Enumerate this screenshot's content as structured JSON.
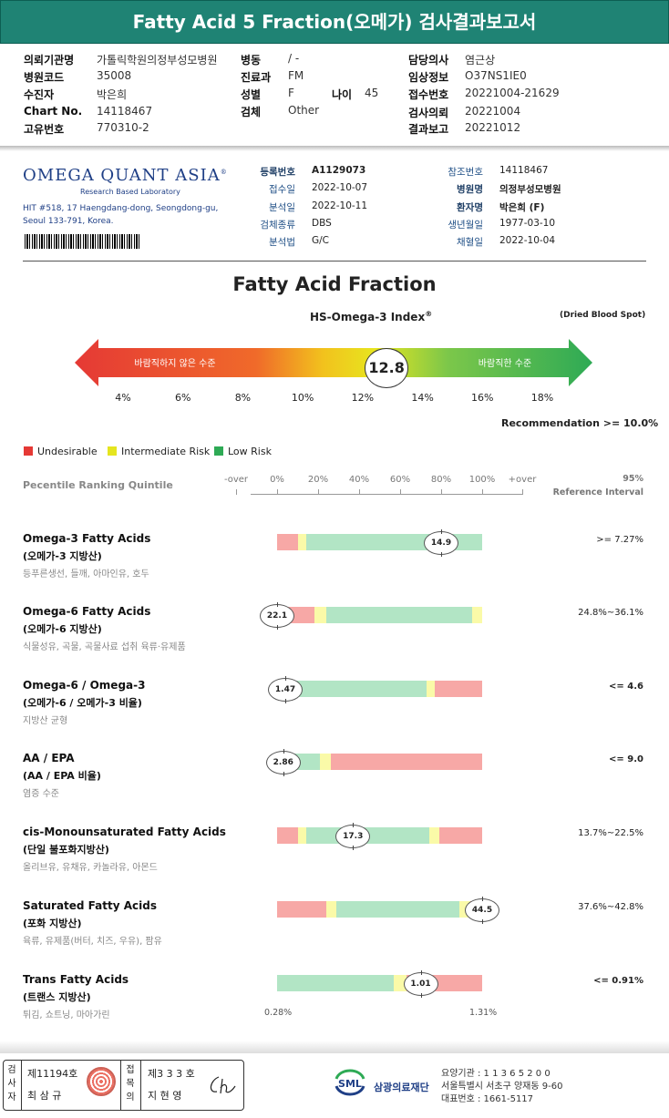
{
  "title": "Fatty Acid 5 Fraction(오메가) 검사결과보고서",
  "header": {
    "col1": [
      {
        "label": "의뢰기관명",
        "value": "가톨릭학원의정부성모병원"
      },
      {
        "label": "병원코드",
        "value": "35008"
      },
      {
        "label": "수진자",
        "value": "박은희"
      },
      {
        "label": "Chart No.",
        "value": "14118467"
      },
      {
        "label": "고유번호",
        "value": "770310-2"
      }
    ],
    "col2": [
      {
        "label": "병동",
        "value": "/ -"
      },
      {
        "label": "진료과",
        "value": "FM"
      },
      {
        "label": "성별",
        "value": "F"
      },
      {
        "label": "검체",
        "value": "Other"
      }
    ],
    "age": {
      "label": "나이",
      "value": "45"
    },
    "col3": [
      {
        "label": "담당의사",
        "value": "염근상"
      },
      {
        "label": "임상정보",
        "value": "O37NS1IE0"
      },
      {
        "label": "접수번호",
        "value": "20221004-21629"
      },
      {
        "label": "검사의뢰",
        "value": "20221004"
      },
      {
        "label": "결과보고",
        "value": "20221012"
      }
    ]
  },
  "lab": {
    "logo": "OMEGA QUANT ASIA",
    "logo_reg": "®",
    "logo_sub": "Research Based Laboratory",
    "address_1": "HIT #518, 17 Haengdang-dong, Seongdong-gu,",
    "address_2": "Seoul 133-791, Korea.",
    "left_fields": [
      {
        "label": "등록번호",
        "value": "A1129073",
        "bold": true
      },
      {
        "label": "접수일",
        "value": "2022-10-07"
      },
      {
        "label": "분석일",
        "value": "2022-10-11"
      },
      {
        "label": "검체종류",
        "value": "DBS"
      },
      {
        "label": "분석법",
        "value": "G/C"
      }
    ],
    "right_fields": [
      {
        "label": "참조번호",
        "value": "14118467"
      },
      {
        "label": "병원명",
        "value": "의정부성모병원",
        "bold": true
      },
      {
        "label": "환자명",
        "value": "박은희 (F)",
        "bold": true
      },
      {
        "label": "생년월일",
        "value": "1977-03-10"
      },
      {
        "label": "채혈일",
        "value": "2022-10-04"
      }
    ]
  },
  "index": {
    "main_title": "Fatty Acid Fraction",
    "title": "HS-Omega-3 Index",
    "title_reg": "®",
    "specimen_note": "(Dried Blood Spot)",
    "bad_label": "바람직하지 않은 수준",
    "good_label": "바람직한 수준",
    "score": 12.8,
    "score_text": "12.8",
    "ticks": [
      "4%",
      "6%",
      "8%",
      "10%",
      "12%",
      "14%",
      "16%",
      "18%"
    ],
    "tick_values": [
      4,
      6,
      8,
      10,
      12,
      14,
      16,
      18
    ],
    "recommendation": "Recommendation  >= 10.0%"
  },
  "legend": [
    {
      "label": "Undesirable",
      "color": "#e53935"
    },
    {
      "label": "Intermediate Risk",
      "color": "#e5e51f"
    },
    {
      "label": "Low Risk",
      "color": "#2eaa55"
    }
  ],
  "percentile": {
    "label": "Pecentile Ranking Quintile",
    "scale": [
      "-over",
      "0%",
      "20%",
      "40%",
      "60%",
      "80%",
      "100%",
      "+over"
    ],
    "ref_header_1": "95%",
    "ref_header_2": "Reference Interval"
  },
  "colors": {
    "red": "#f7a8a6",
    "yellow": "#fafaa8",
    "green": "#b2e5c5",
    "brand": "#1f8374"
  },
  "results": [
    {
      "name": "Omega-3 Fatty Acids",
      "sub": "(오메가-3 지방산)",
      "desc": "등푸른생선, 들깨, 아마인유, 호두",
      "ref": ">= 7.27%",
      "value": "14.9",
      "marker_pct": 0.8,
      "segments": [
        [
          "red",
          0.1
        ],
        [
          "yellow",
          0.04
        ],
        [
          "green",
          0.86
        ]
      ]
    },
    {
      "name": "Omega-6 Fatty Acids",
      "sub": "(오메가-6 지방산)",
      "desc": "식물성유, 곡물, 곡물사료 섭취 육류·유제품",
      "ref": "24.8%~36.1%",
      "value": "22.1",
      "marker_pct": 0.0,
      "segments": [
        [
          "red",
          0.18
        ],
        [
          "yellow",
          0.06
        ],
        [
          "green",
          0.71
        ],
        [
          "yellow",
          0.05
        ]
      ]
    },
    {
      "name": "Omega-6 / Omega-3",
      "sub": "(오메가-6 / 오메가-3 비율)",
      "desc": "지방산 균형",
      "ref": "<= 4.6",
      "value": "1.47",
      "marker_pct": 0.04,
      "segments": [
        [
          "green",
          0.73
        ],
        [
          "yellow",
          0.04
        ],
        [
          "red",
          0.23
        ]
      ]
    },
    {
      "name": "AA / EPA",
      "sub": "(AA / EPA 비율)",
      "desc": "염증 수준",
      "ref": "<= 9.0",
      "value": "2.86",
      "marker_pct": 0.03,
      "segments": [
        [
          "green",
          0.21
        ],
        [
          "yellow",
          0.05
        ],
        [
          "red",
          0.74
        ]
      ]
    },
    {
      "name": "cis-Monounsaturated Fatty Acids",
      "sub": "(단일 불포화지방산)",
      "desc": "올리브유, 유채유, 카놀라유, 아몬드",
      "ref": "13.7%~22.5%",
      "value": "17.3",
      "marker_pct": 0.37,
      "segments": [
        [
          "red",
          0.1
        ],
        [
          "yellow",
          0.04
        ],
        [
          "green",
          0.6
        ],
        [
          "yellow",
          0.05
        ],
        [
          "red",
          0.21
        ]
      ]
    },
    {
      "name": "Saturated Fatty Acids",
      "sub": "(포화 지방산)",
      "desc": "육류, 유제품(버터, 치즈, 우유), 팜유",
      "ref": "37.6%~42.8%",
      "value": "44.5",
      "marker_pct": 1.0,
      "segments": [
        [
          "red",
          0.24
        ],
        [
          "yellow",
          0.05
        ],
        [
          "green",
          0.6
        ],
        [
          "yellow",
          0.05
        ],
        [
          "red",
          0.06
        ]
      ]
    },
    {
      "name": "Trans Fatty Acids",
      "sub": "(트랜스 지방산)",
      "desc": "튀김, 쇼트닝, 마아가린",
      "ref": "<= 0.91%",
      "value": "1.01",
      "marker_pct": 0.7,
      "segments": [
        [
          "green",
          0.57
        ],
        [
          "yellow",
          0.06
        ],
        [
          "red",
          0.37
        ]
      ]
    }
  ],
  "trans_range": {
    "min": "0.28%",
    "max": "1.31%"
  },
  "footer": {
    "sign_label_1": "검사자",
    "sign_no_1": "제11194호",
    "sign_name_1": "최 삼 규",
    "sign_label_2": "접목의",
    "sign_no_2": "제3 3 3 호",
    "sign_name_2": "지 현 영",
    "org_name": "삼광의료재단",
    "org_logo": "SML",
    "org_line1": "요양기관 : 1 1 3 6 5 2 0 0",
    "org_line2": "서울특별시 서초구 양재동 9-60",
    "org_line3": "대표번호 : 1661-5117"
  }
}
